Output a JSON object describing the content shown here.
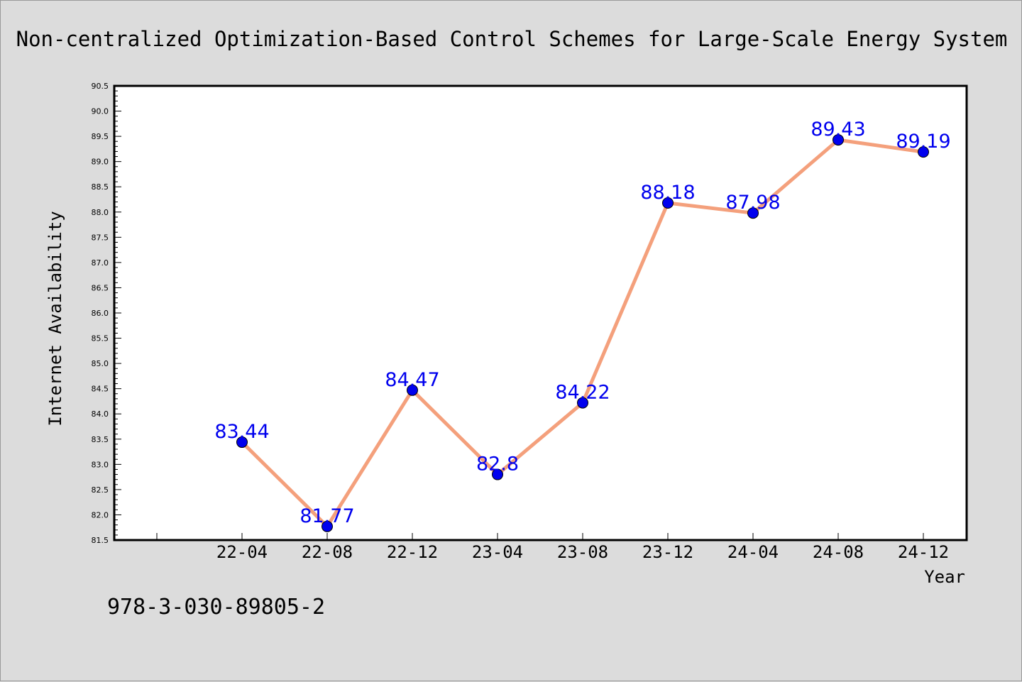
{
  "chart_data": {
    "type": "line",
    "title": "Non-centralized Optimization-Based Control Schemes for Large-Scale Energy System",
    "xlabel": "Year",
    "ylabel": "Internet Availability",
    "annotation": "978-3-030-89805-2",
    "categories": [
      "22-04",
      "22-08",
      "22-12",
      "23-04",
      "23-08",
      "23-12",
      "24-04",
      "24-08",
      "24-12"
    ],
    "series": [
      {
        "values": [
          83.44,
          81.77,
          84.47,
          82.8,
          84.22,
          88.18,
          87.98,
          89.43,
          89.19
        ],
        "labels": [
          "83.44",
          "81.77",
          "84.47",
          "82.8",
          "84.22",
          "88.18",
          "87.98",
          "89.43",
          "89.19"
        ],
        "line_color": "#f4a07c",
        "marker_color": "#0000ee",
        "label_color": "#0000ee"
      }
    ],
    "ylim": [
      81.5,
      90.5
    ],
    "yticks": [
      "81.5",
      "82.0",
      "82.5",
      "83.0",
      "83.5",
      "84.0",
      "84.5",
      "85.0",
      "85.5",
      "86.0",
      "86.5",
      "87.0",
      "87.5",
      "88.0",
      "88.5",
      "89.0",
      "89.5",
      "90.0",
      "90.5"
    ],
    "grid": false,
    "legend": "none"
  }
}
